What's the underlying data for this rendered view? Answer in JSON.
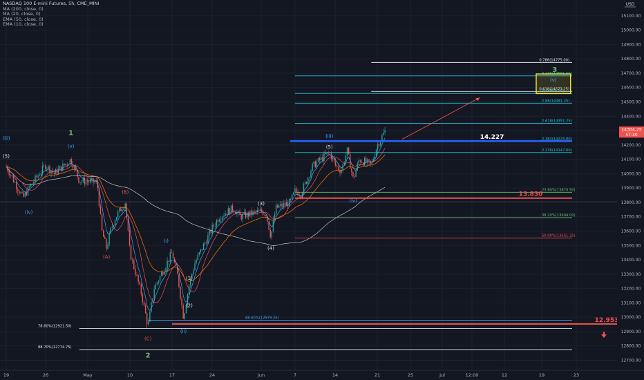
{
  "legend": {
    "symbol": "NASDAQ 100 E-mini Futures, 5h, CME_MINI",
    "indicators": [
      "MA (200, close, 0)",
      "MA (20, close, 0)",
      "EMA (50, close, 0)",
      "EMA (10, close, 0)"
    ]
  },
  "currency": "USD",
  "colors": {
    "background": "#131722",
    "up": "#26a69a",
    "down": "#ef5350",
    "text": "#b2b5be",
    "fib_teal": "#26c6da",
    "fib_white": "#e0e3eb",
    "fib_green": "#66bb6a",
    "fib_red": "#ef5350",
    "wave_blue": "#42a5f5",
    "wave_red": "#ef5350",
    "wave_green": "#66bb6a",
    "zone": "#f5e52a",
    "key_line": "#2962ff"
  },
  "chart_data": {
    "type": "candlestick",
    "ylim": [
      12630,
      15210
    ],
    "y_ticks": [
      "15100.00",
      "15000.00",
      "14900.00",
      "14800.00",
      "14700.00",
      "14600.00",
      "14500.00",
      "14400.00",
      "14300.00",
      "14200.00",
      "14100.00",
      "14000.00",
      "13900.00",
      "13800.00",
      "13700.00",
      "13600.00",
      "13500.00",
      "13400.00",
      "13300.00",
      "13200.00",
      "13100.00",
      "13000.00",
      "12900.00",
      "12800.00",
      "12700.00",
      "12600.00"
    ],
    "x_ticks": [
      "19",
      "26",
      "May",
      "10",
      "17",
      "24",
      "Jun",
      "7",
      "14",
      "21",
      "25",
      "Jul",
      "12:00",
      "12",
      "19",
      "23"
    ],
    "last_price": "14304.25",
    "countdown": "57:30",
    "price_path": [
      {
        "date": "Apr 19",
        "price": 14050
      },
      {
        "date": "Apr 22",
        "price": 13830
      },
      {
        "date": "Apr 23",
        "price": 13900
      },
      {
        "date": "Apr 26",
        "price": 14060
      },
      {
        "date": "Apr 27",
        "price": 14000
      },
      {
        "date": "Apr 29",
        "price": 14100
      },
      {
        "date": "Apr 30",
        "price": 13950
      },
      {
        "date": "May 3",
        "price": 13940
      },
      {
        "date": "May 4",
        "price": 13600
      },
      {
        "date": "May 5",
        "price": 13480
      },
      {
        "date": "May 6",
        "price": 13620
      },
      {
        "date": "May 7",
        "price": 13700
      },
      {
        "date": "May 9",
        "price": 13800
      },
      {
        "date": "May 10",
        "price": 13450
      },
      {
        "date": "May 11",
        "price": 13300
      },
      {
        "date": "May 12",
        "price": 13150
      },
      {
        "date": "May 13",
        "price": 12935
      },
      {
        "date": "May 14",
        "price": 13200
      },
      {
        "date": "May 17",
        "price": 13450
      },
      {
        "date": "May 18",
        "price": 13280
      },
      {
        "date": "May 19",
        "price": 13000
      },
      {
        "date": "May 20",
        "price": 13230
      },
      {
        "date": "May 21",
        "price": 13380
      },
      {
        "date": "May 24",
        "price": 13620
      },
      {
        "date": "May 25",
        "price": 13700
      },
      {
        "date": "May 27",
        "price": 13760
      },
      {
        "date": "May 28",
        "price": 13700
      },
      {
        "date": "Jun 1",
        "price": 13740
      },
      {
        "date": "Jun 2",
        "price": 13720
      },
      {
        "date": "Jun 3",
        "price": 13560
      },
      {
        "date": "Jun 4",
        "price": 13760
      },
      {
        "date": "Jun 7",
        "price": 13800
      },
      {
        "date": "Jun 8",
        "price": 13880
      },
      {
        "date": "Jun 9",
        "price": 13860
      },
      {
        "date": "Jun 10",
        "price": 13950
      },
      {
        "date": "Jun 11",
        "price": 14050
      },
      {
        "date": "Jun 14",
        "price": 14150
      },
      {
        "date": "Jun 15",
        "price": 14060
      },
      {
        "date": "Jun 16",
        "price": 14020
      },
      {
        "date": "Jun 17",
        "price": 14160
      },
      {
        "date": "Jun 18",
        "price": 13960
      },
      {
        "date": "Jun 19",
        "price": 14100
      },
      {
        "date": "Jun 21",
        "price": 14060
      },
      {
        "date": "Jun 22",
        "price": 14200
      },
      {
        "date": "Jun 23",
        "price": 14304
      }
    ],
    "hlines": [
      {
        "label": "0.786(14775.00)",
        "price": 14775,
        "color": "fib_white",
        "from_date": "Jun 21"
      },
      {
        "label": "3.236(14681.50)",
        "price": 14681.5,
        "color": "fib_teal",
        "from_date": "Jun 8"
      },
      {
        "label": "0.618(14573.25)",
        "price": 14573.25,
        "color": "fib_white",
        "from_date": "Jun 21"
      },
      {
        "label": "3(14559.50)",
        "price": 14559.5,
        "color": "fib_teal",
        "from_date": "Jun 8"
      },
      {
        "label": "2.88(14491.25)",
        "price": 14491.25,
        "color": "fib_teal",
        "from_date": "Jun 8"
      },
      {
        "label": "2.618(14351.25)",
        "price": 14351.25,
        "color": "fib_teal",
        "from_date": "Jun 8"
      },
      {
        "label": "2.382(14225.00)",
        "price": 14225,
        "color": "fib_teal",
        "from_date": "Jun 8"
      },
      {
        "label": "2.236(14147.00)",
        "price": 14147,
        "color": "fib_teal",
        "from_date": "Jun 8"
      },
      {
        "label": "23.60%(13870.50)",
        "price": 13870.5,
        "color": "fib_green",
        "from_date": "Jun 8"
      },
      {
        "label": "38.20%(13694.00)",
        "price": 13694,
        "color": "fib_green",
        "from_date": "Jun 8"
      },
      {
        "label": "50.00%(13551.25)",
        "price": 13551.25,
        "color": "fib_red",
        "from_date": "Jun 8"
      },
      {
        "label": "88.60%(12979.25)",
        "price": 12979.25,
        "color": "wave_blue",
        "from_date": "May 13"
      },
      {
        "label": "78.60%(12921.50)",
        "price": 12921.5,
        "color": "fib_white",
        "from_date": "Apr 30"
      },
      {
        "label": "88.70%(12774.75)",
        "price": 12774.75,
        "color": "fib_white",
        "from_date": "Apr 30"
      }
    ],
    "key_levels": [
      {
        "label": "14.227",
        "price": 14227,
        "color": "key_line",
        "from_date": "Jun 7"
      },
      {
        "label": "13.830",
        "price": 13830,
        "color": "fib_red",
        "from_date": "Jun 8"
      },
      {
        "label": "12.953",
        "price": 12953,
        "color": "fib_red",
        "from_date": "May 17"
      }
    ],
    "target_zone": {
      "wave_label": "3",
      "inner_label": "(v)",
      "price_top": 14695,
      "price_bottom": 14558,
      "from_date": "Jul 11",
      "to_date": "Jul 17"
    },
    "wave_labels": [
      {
        "text": "(iii)",
        "date": "Apr 19",
        "price": 14235,
        "color": "wave_blue"
      },
      {
        "text": "(5)",
        "date": "Apr 19",
        "price": 14110,
        "color": "fib_white"
      },
      {
        "text": "(iv)",
        "date": "Apr 23",
        "price": 13720,
        "color": "wave_blue"
      },
      {
        "text": "1",
        "date": "Apr 29",
        "price": 14270,
        "color": "wave_green",
        "large": true
      },
      {
        "text": "(v)",
        "date": "Apr 29",
        "price": 14180,
        "color": "wave_blue"
      },
      {
        "text": "(A)",
        "date": "May 5",
        "price": 13410,
        "color": "wave_red"
      },
      {
        "text": "(B)",
        "date": "May 9",
        "price": 13860,
        "color": "wave_red"
      },
      {
        "text": "(i)",
        "date": "May 16",
        "price": 13520,
        "color": "wave_blue"
      },
      {
        "text": "(C)",
        "date": "May 13",
        "price": 12840,
        "color": "wave_red"
      },
      {
        "text": "2",
        "date": "May 13",
        "price": 12720,
        "color": "wave_green",
        "large": true
      },
      {
        "text": "(1)",
        "date": "May 20",
        "price": 13260,
        "color": "fib_white"
      },
      {
        "text": "(2)",
        "date": "May 20",
        "price": 13070,
        "color": "fib_white"
      },
      {
        "text": "(ii)",
        "date": "May 19",
        "price": 12890,
        "color": "wave_blue"
      },
      {
        "text": "(3)",
        "date": "Jun 1",
        "price": 13780,
        "color": "fib_white"
      },
      {
        "text": "(4)",
        "date": "Jun 3",
        "price": 13470,
        "color": "fib_white"
      },
      {
        "text": "(iii)",
        "date": "Jun 14",
        "price": 14250,
        "color": "wave_blue"
      },
      {
        "text": "(5)",
        "date": "Jun 14",
        "price": 14175,
        "color": "fib_white"
      },
      {
        "text": "(iv)",
        "date": "Jun 18",
        "price": 13800,
        "color": "wave_blue"
      }
    ],
    "arrow": {
      "from_date": "Jun 25",
      "from_price": 14240,
      "to_date": "Jul 5",
      "to_price": 14530
    },
    "down_arrow": {
      "date": "Jul 28",
      "price": 12880
    }
  }
}
